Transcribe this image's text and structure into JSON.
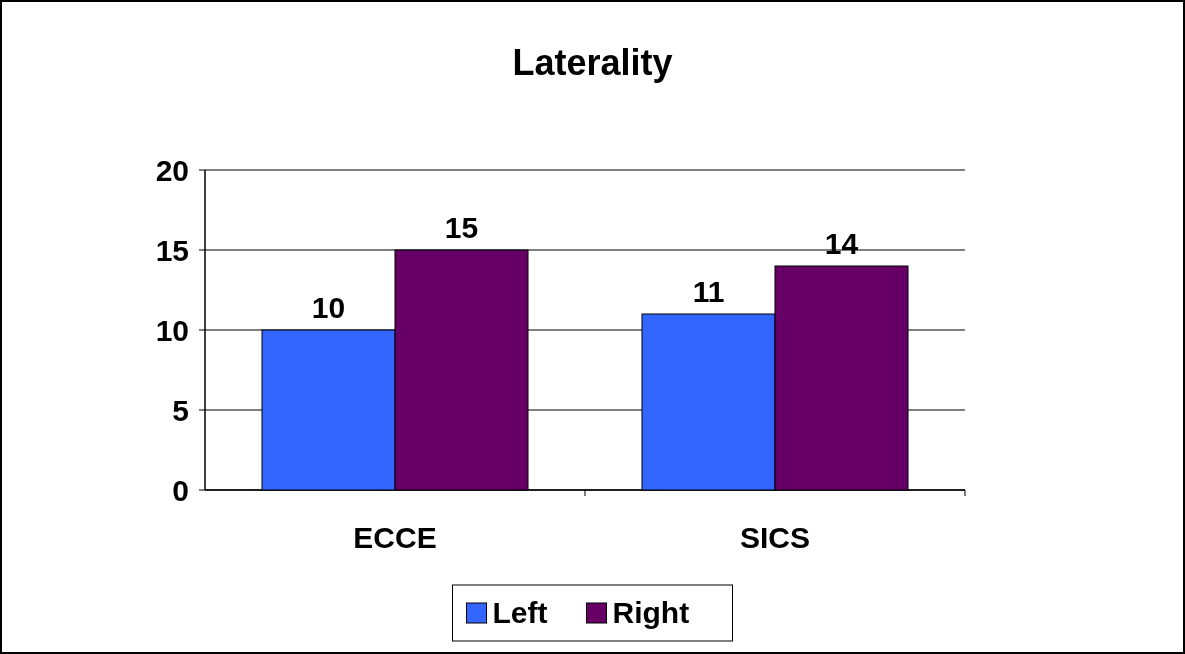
{
  "chart_data": {
    "type": "bar",
    "title": "Laterality",
    "categories": [
      "ECCE",
      "SICS"
    ],
    "series": [
      {
        "name": "Left",
        "color": "#3366ff",
        "values": [
          10,
          11
        ]
      },
      {
        "name": "Right",
        "color": "#660066",
        "values": [
          15,
          14
        ]
      }
    ],
    "ylim": [
      0,
      20
    ],
    "yticks": [
      0,
      5,
      10,
      15,
      20
    ],
    "grid": "y",
    "legend": "bottom",
    "data_labels": true
  }
}
